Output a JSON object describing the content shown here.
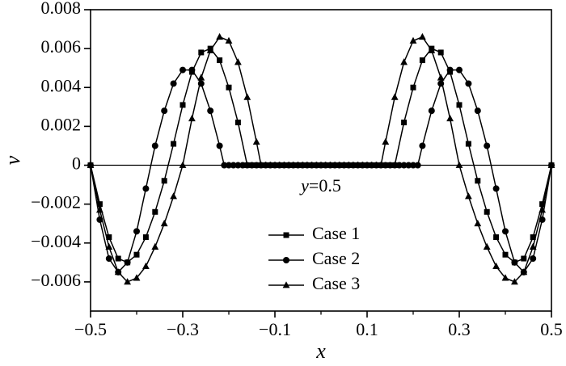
{
  "chart_data": {
    "type": "line",
    "title": "",
    "xlabel": "x",
    "ylabel": "v",
    "annotation": "y=0.5",
    "xlim": [
      -0.5,
      0.5
    ],
    "ylim": [
      -0.0075,
      0.008
    ],
    "grid": false,
    "legend_position": "inside-bottom-center",
    "colors": {
      "foreground": "#000000",
      "background": "#ffffff"
    },
    "x_ticks": [
      -0.5,
      -0.3,
      -0.1,
      0.1,
      0.3,
      0.5
    ],
    "x_tick_labels": [
      "−0.5",
      "−0.3",
      "−0.1",
      "0.1",
      "0.3",
      "0.5"
    ],
    "x_minor_ticks": [
      -0.4,
      -0.2,
      0,
      0.2,
      0.4
    ],
    "y_ticks": [
      -0.006,
      -0.004,
      -0.002,
      0,
      0.002,
      0.004,
      0.006,
      0.008
    ],
    "y_tick_labels": [
      "−0.006",
      "−0.004",
      "−0.002",
      "0",
      "0.002",
      "0.004",
      "0.006",
      "0.008"
    ],
    "series": [
      {
        "name": "Case 1",
        "marker": "square",
        "x": [
          -0.5,
          -0.48,
          -0.46,
          -0.44,
          -0.42,
          -0.4,
          -0.38,
          -0.36,
          -0.34,
          -0.32,
          -0.3,
          -0.28,
          -0.26,
          -0.24,
          -0.22,
          -0.2,
          -0.18,
          -0.16,
          -0.15,
          -0.14,
          -0.13,
          -0.12,
          -0.11,
          -0.1,
          -0.09,
          -0.08,
          -0.07,
          -0.06,
          -0.05,
          -0.04,
          -0.03,
          -0.02,
          -0.01,
          0,
          0.01,
          0.02,
          0.03,
          0.04,
          0.05,
          0.06,
          0.07,
          0.08,
          0.09,
          0.1,
          0.11,
          0.12,
          0.13,
          0.14,
          0.15,
          0.16,
          0.18,
          0.2,
          0.22,
          0.24,
          0.26,
          0.28,
          0.3,
          0.32,
          0.34,
          0.36,
          0.38,
          0.4,
          0.42,
          0.44,
          0.46,
          0.48,
          0.5
        ],
        "y": [
          0,
          -0.002,
          -0.0037,
          -0.0048,
          -0.005,
          -0.0046,
          -0.0037,
          -0.0024,
          -0.0008,
          0.0011,
          0.0031,
          0.0048,
          0.0058,
          0.006,
          0.0054,
          0.004,
          0.0022,
          0,
          0,
          0,
          0,
          0,
          0,
          0,
          0,
          0,
          0,
          0,
          0,
          0,
          0,
          0,
          0,
          0,
          0,
          0,
          0,
          0,
          0,
          0,
          0,
          0,
          0,
          0,
          0,
          0,
          0,
          0,
          0,
          0,
          0.0022,
          0.004,
          0.0054,
          0.006,
          0.0058,
          0.0048,
          0.0031,
          0.0011,
          -0.0008,
          -0.0024,
          -0.0037,
          -0.0046,
          -0.005,
          -0.0048,
          -0.0037,
          -0.002,
          0
        ]
      },
      {
        "name": "Case 2",
        "marker": "circle",
        "x": [
          -0.5,
          -0.48,
          -0.46,
          -0.44,
          -0.42,
          -0.4,
          -0.38,
          -0.36,
          -0.34,
          -0.32,
          -0.3,
          -0.28,
          -0.26,
          -0.24,
          -0.22,
          -0.21,
          -0.2,
          -0.19,
          -0.18,
          -0.17,
          -0.16,
          -0.15,
          -0.14,
          -0.13,
          -0.12,
          -0.11,
          -0.1,
          -0.09,
          -0.08,
          -0.07,
          -0.06,
          -0.05,
          -0.04,
          -0.03,
          -0.02,
          -0.01,
          0,
          0.01,
          0.02,
          0.03,
          0.04,
          0.05,
          0.06,
          0.07,
          0.08,
          0.09,
          0.1,
          0.11,
          0.12,
          0.13,
          0.14,
          0.15,
          0.16,
          0.17,
          0.18,
          0.19,
          0.2,
          0.21,
          0.22,
          0.24,
          0.26,
          0.28,
          0.3,
          0.32,
          0.34,
          0.36,
          0.38,
          0.4,
          0.42,
          0.44,
          0.46,
          0.48,
          0.5
        ],
        "y": [
          0,
          -0.0028,
          -0.0048,
          -0.0055,
          -0.005,
          -0.0034,
          -0.0012,
          0.001,
          0.0028,
          0.0042,
          0.0049,
          0.0049,
          0.0042,
          0.0028,
          0.001,
          0,
          0,
          0,
          0,
          0,
          0,
          0,
          0,
          0,
          0,
          0,
          0,
          0,
          0,
          0,
          0,
          0,
          0,
          0,
          0,
          0,
          0,
          0,
          0,
          0,
          0,
          0,
          0,
          0,
          0,
          0,
          0,
          0,
          0,
          0,
          0,
          0,
          0,
          0,
          0,
          0,
          0,
          0,
          0.001,
          0.0028,
          0.0042,
          0.0049,
          0.0049,
          0.0042,
          0.0028,
          0.001,
          -0.0012,
          -0.0034,
          -0.005,
          -0.0055,
          -0.0048,
          -0.0028,
          0
        ]
      },
      {
        "name": "Case 3",
        "marker": "triangle",
        "x": [
          -0.5,
          -0.48,
          -0.46,
          -0.44,
          -0.42,
          -0.4,
          -0.38,
          -0.36,
          -0.34,
          -0.32,
          -0.3,
          -0.28,
          -0.26,
          -0.24,
          -0.22,
          -0.2,
          -0.18,
          -0.16,
          -0.14,
          -0.13,
          -0.12,
          -0.11,
          -0.1,
          -0.09,
          -0.08,
          -0.07,
          -0.06,
          -0.05,
          -0.04,
          -0.03,
          -0.02,
          -0.01,
          0,
          0.01,
          0.02,
          0.03,
          0.04,
          0.05,
          0.06,
          0.07,
          0.08,
          0.09,
          0.1,
          0.11,
          0.12,
          0.13,
          0.14,
          0.16,
          0.18,
          0.2,
          0.22,
          0.24,
          0.26,
          0.28,
          0.3,
          0.32,
          0.34,
          0.36,
          0.38,
          0.4,
          0.42,
          0.44,
          0.46,
          0.48,
          0.5
        ],
        "y": [
          0,
          -0.0023,
          -0.0042,
          -0.0055,
          -0.006,
          -0.0058,
          -0.0052,
          -0.0042,
          -0.003,
          -0.0016,
          0,
          0.0024,
          0.0045,
          0.0059,
          0.0066,
          0.0064,
          0.0053,
          0.0035,
          0.0012,
          0,
          0,
          0,
          0,
          0,
          0,
          0,
          0,
          0,
          0,
          0,
          0,
          0,
          0,
          0,
          0,
          0,
          0,
          0,
          0,
          0,
          0,
          0,
          0,
          0,
          0,
          0,
          0.0012,
          0.0035,
          0.0053,
          0.0064,
          0.0066,
          0.0059,
          0.0045,
          0.0024,
          0,
          -0.0016,
          -0.003,
          -0.0042,
          -0.0052,
          -0.0058,
          -0.006,
          -0.0055,
          -0.0042,
          -0.0023,
          0
        ]
      }
    ]
  }
}
